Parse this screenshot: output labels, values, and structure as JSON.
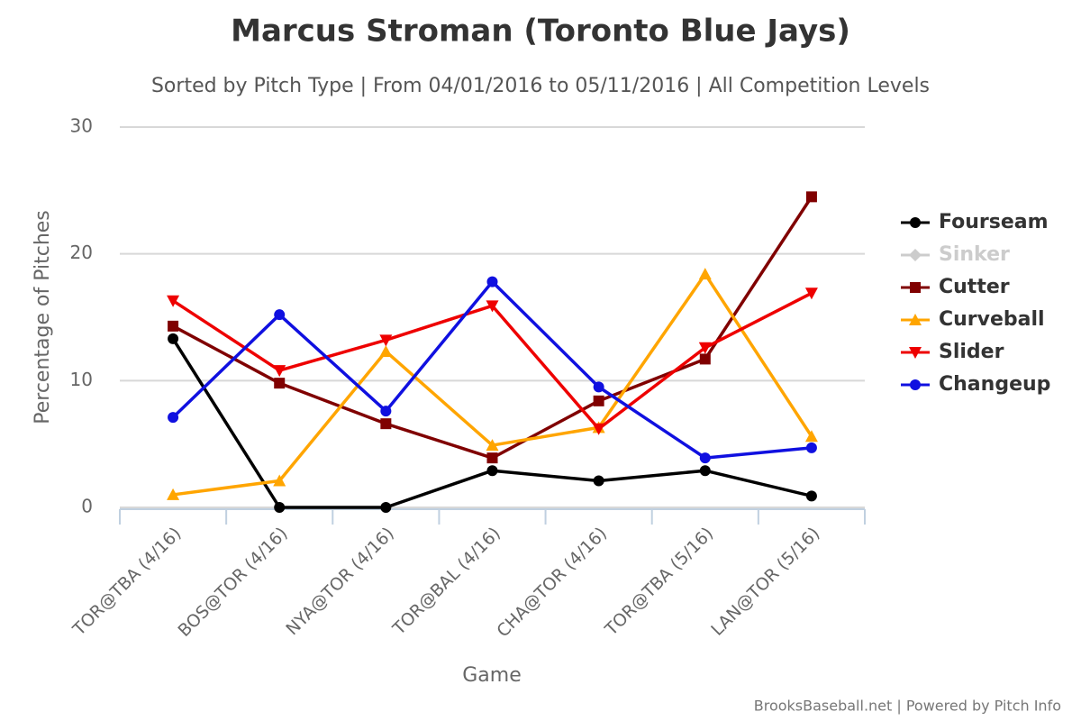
{
  "chart_data": {
    "type": "line",
    "title": "Marcus Stroman (Toronto Blue Jays)",
    "subtitle": "Sorted by Pitch Type | From 04/01/2016 to 05/11/2016 | All Competition Levels",
    "x_label": "Game",
    "y_label": "Percentage of Pitches",
    "credit": "BrooksBaseball.net | Powered by Pitch Info",
    "categories": [
      "TOR@TBA (4/16)",
      "BOS@TOR (4/16)",
      "NYA@TOR (4/16)",
      "TOR@BAL (4/16)",
      "CHA@TOR (4/16)",
      "TOR@TBA (5/16)",
      "LAN@TOR (5/16)"
    ],
    "series": [
      {
        "name": "Fourseam",
        "color": "#000000",
        "marker": "circle",
        "values": [
          13.3,
          0,
          0,
          2.9,
          2.1,
          2.9,
          0.9
        ]
      },
      {
        "name": "Sinker",
        "color": "#cccccc",
        "marker": "diamond",
        "hidden": true,
        "values": [
          null,
          null,
          null,
          null,
          null,
          null,
          null
        ]
      },
      {
        "name": "Cutter",
        "color": "#800000",
        "marker": "square",
        "values": [
          14.3,
          9.8,
          6.6,
          3.9,
          8.4,
          11.7,
          24.5
        ]
      },
      {
        "name": "Curveball",
        "color": "#ffa500",
        "marker": "triangle",
        "values": [
          1.0,
          2.1,
          12.3,
          4.9,
          6.3,
          18.4,
          5.6
        ]
      },
      {
        "name": "Slider",
        "color": "#ee0000",
        "marker": "triangle-down",
        "values": [
          16.3,
          10.8,
          13.2,
          15.9,
          6.2,
          12.6,
          16.9
        ]
      },
      {
        "name": "Changeup",
        "color": "#1010e0",
        "marker": "circle",
        "values": [
          7.1,
          15.2,
          7.6,
          17.8,
          9.5,
          3.9,
          4.7
        ]
      }
    ],
    "ylim": [
      0,
      30
    ],
    "yticks": [
      0,
      10,
      20,
      30
    ],
    "grid": true,
    "legend": "right"
  }
}
